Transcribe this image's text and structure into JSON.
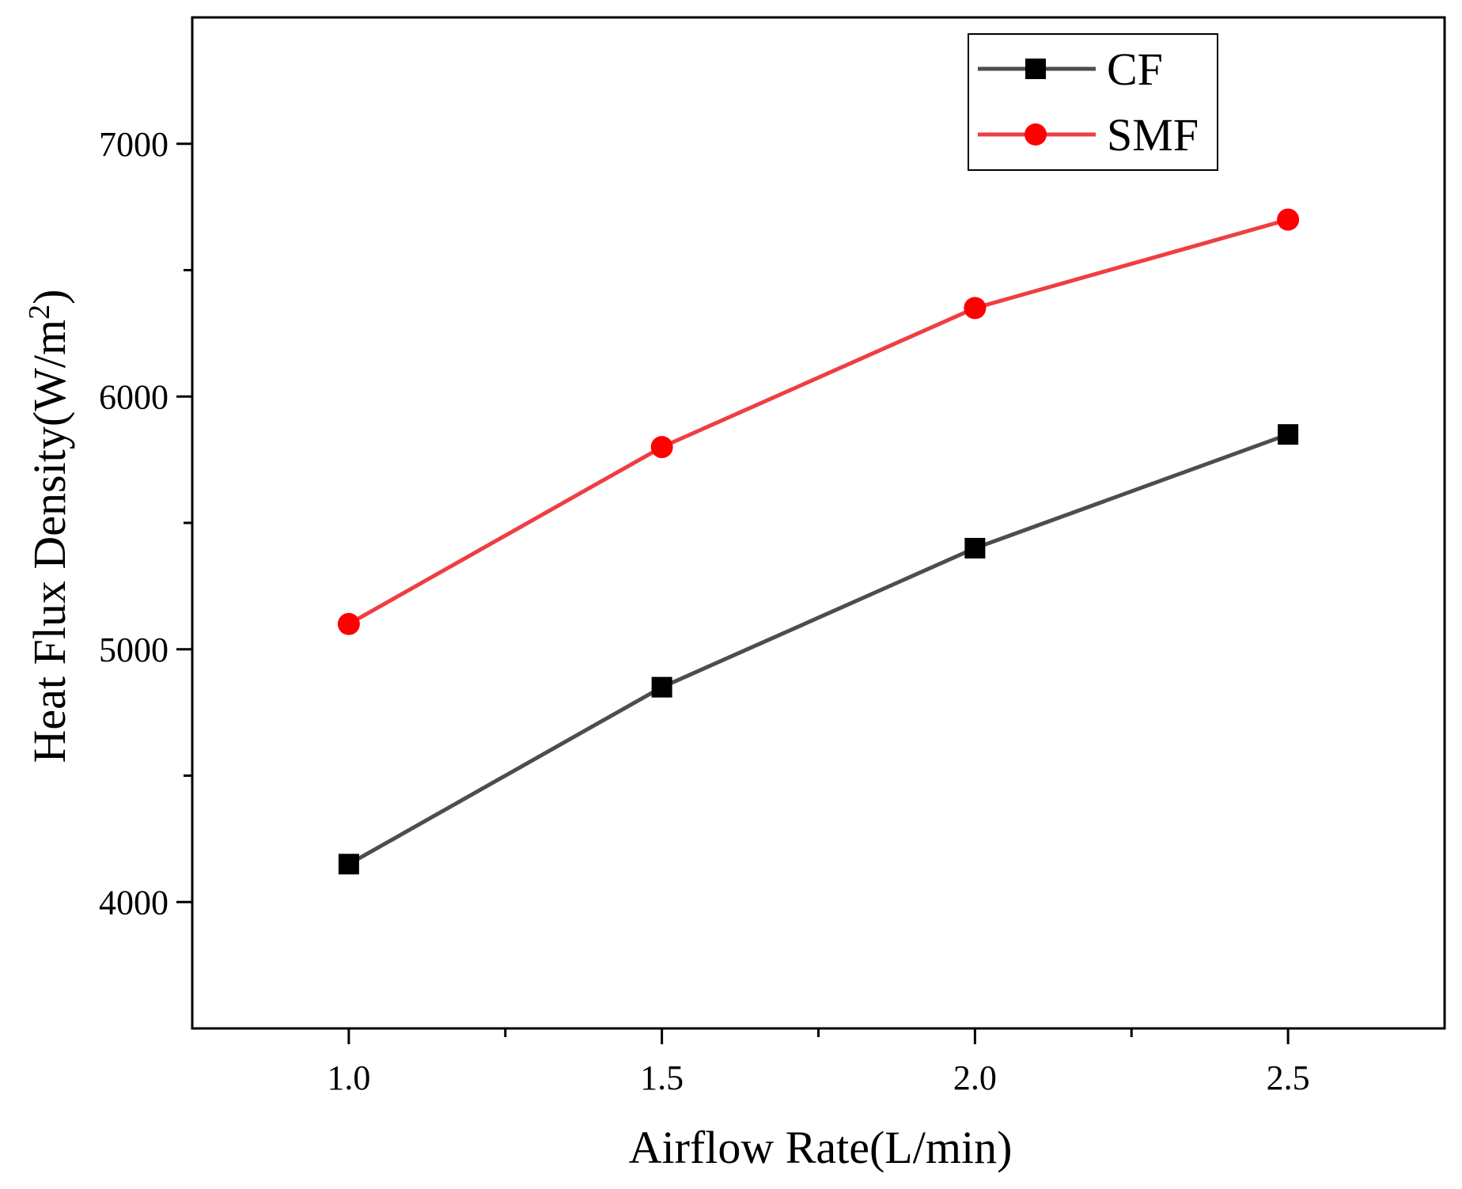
{
  "chart_data": {
    "type": "line",
    "x": [
      1.0,
      1.5,
      2.0,
      2.5
    ],
    "x_tick_labels": [
      "1.0",
      "1.5",
      "2.0",
      "2.5"
    ],
    "y_tick_labels": [
      "4000",
      "5000",
      "6000",
      "7000"
    ],
    "y_ticks": [
      4000,
      5000,
      6000,
      7000
    ],
    "y_minor_ticks": [
      4500,
      5500,
      6500
    ],
    "x_minor_ticks": [
      1.25,
      1.75,
      2.25
    ],
    "xlim": [
      0.75,
      2.75
    ],
    "ylim": [
      3500,
      7500
    ],
    "xlabel": "Airflow Rate(L/min)",
    "ylabel_main": "Heat Flux Density(W/m",
    "ylabel_sup": "2",
    "ylabel_close": ")",
    "grid": false,
    "legend_position": "top-right",
    "series": [
      {
        "name": "CF",
        "marker": "square",
        "line_color": "#4d4d4d",
        "marker_color": "#000000",
        "values": [
          4150,
          4850,
          5400,
          5850
        ]
      },
      {
        "name": "SMF",
        "marker": "circle",
        "line_color": "#ef3e42",
        "marker_color": "#ff0000",
        "values": [
          5100,
          5800,
          6350,
          6700
        ]
      }
    ]
  }
}
